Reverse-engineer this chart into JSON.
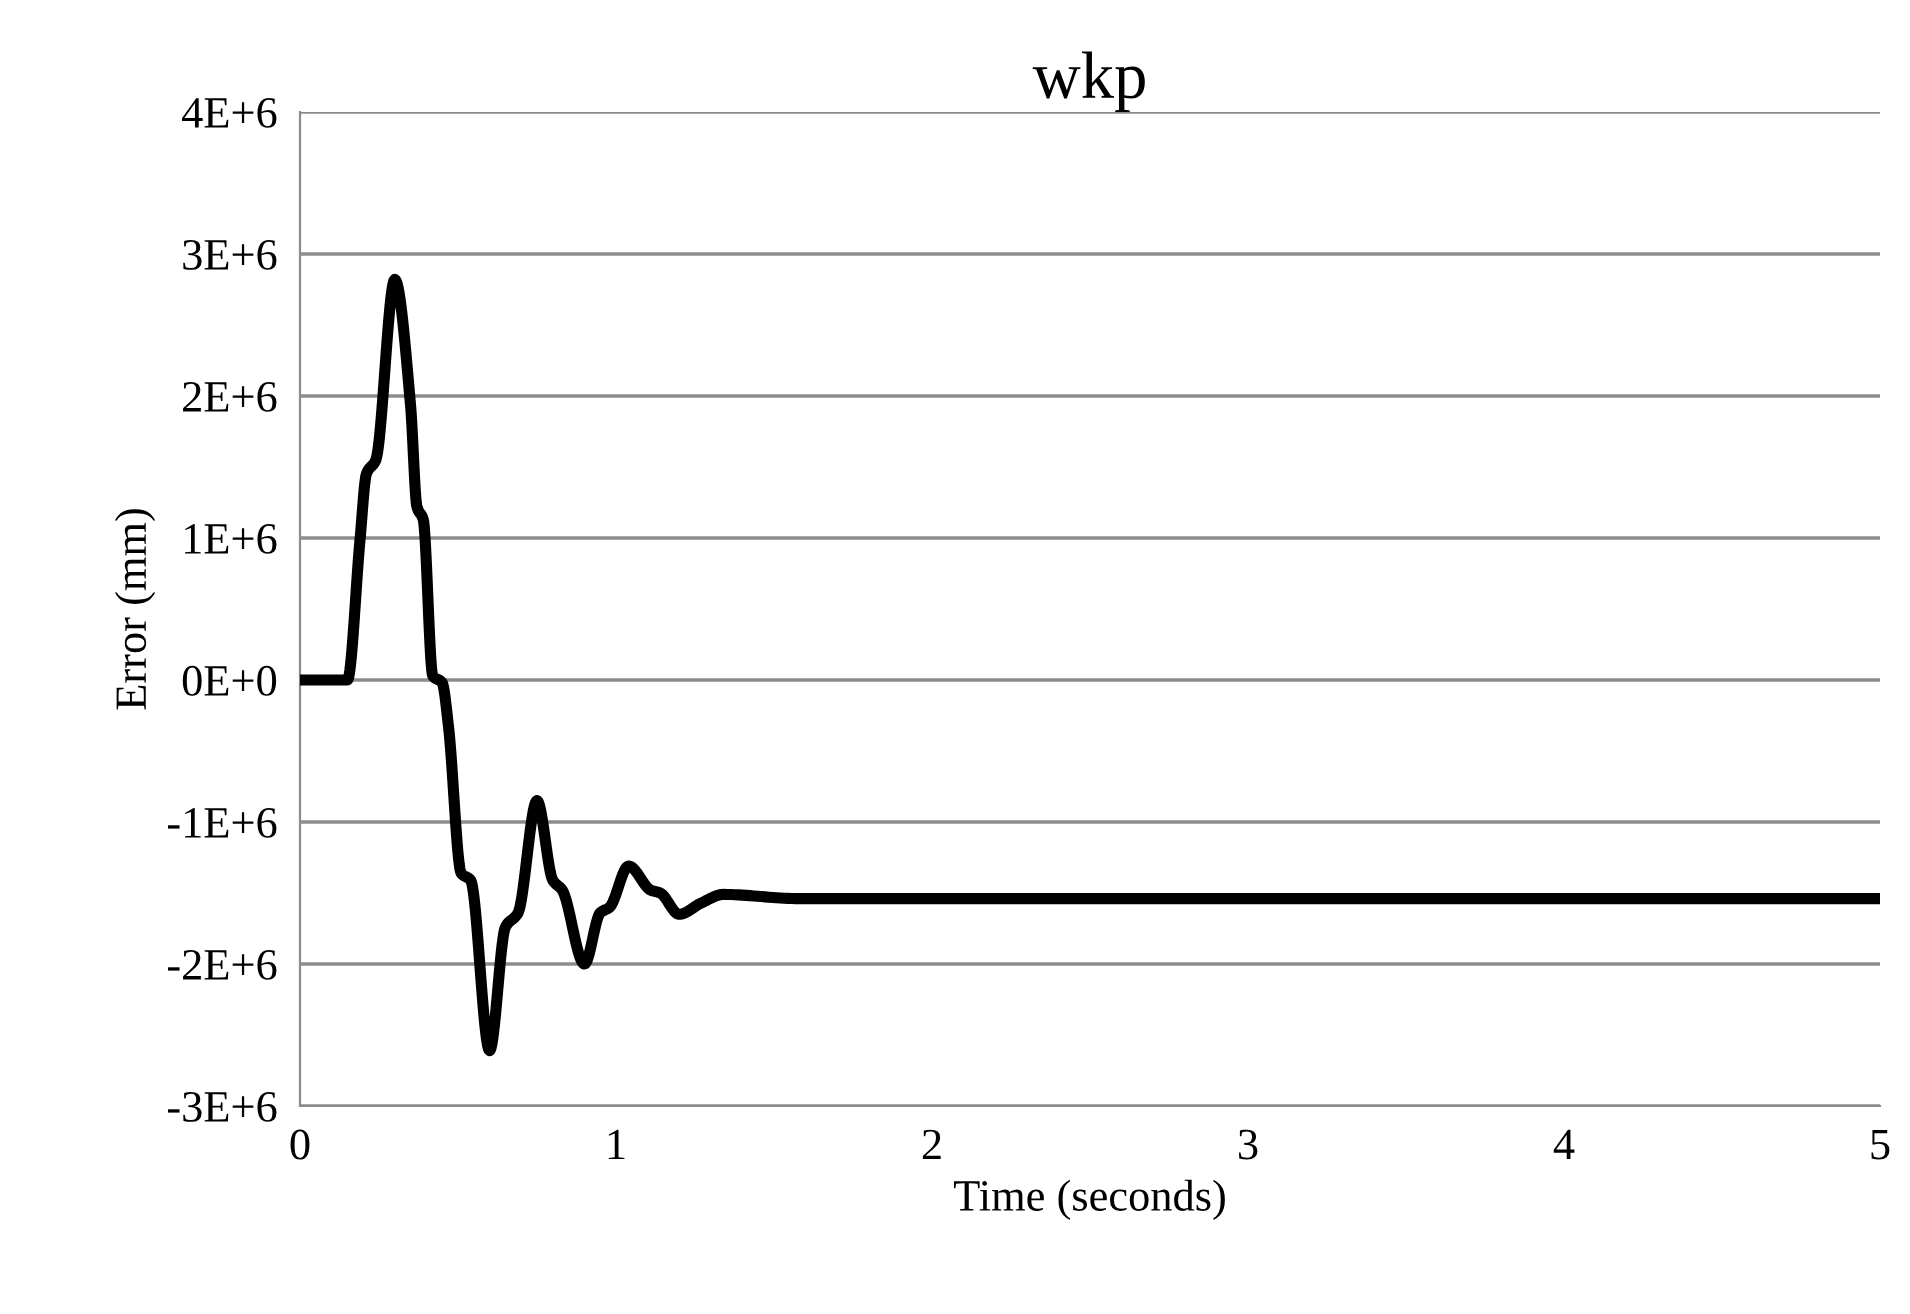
{
  "chart_data": {
    "type": "line",
    "title": "wkp",
    "xlabel": "Time (seconds)",
    "ylabel": "Error (mm)",
    "x": [
      0,
      0.15,
      0.19,
      0.21,
      0.24,
      0.3,
      0.35,
      0.37,
      0.39,
      0.42,
      0.45,
      0.47,
      0.51,
      0.54,
      0.6,
      0.65,
      0.69,
      0.75,
      0.8,
      0.83,
      0.9,
      0.95,
      0.98,
      1.04,
      1.11,
      1.14,
      1.2,
      1.27,
      1.34,
      1.58,
      5
    ],
    "series": [
      {
        "color": "#000000",
        "values": [
          0,
          0,
          990000,
          1450000,
          1550000,
          2820000,
          1930000,
          1220000,
          1130000,
          30000,
          -20000,
          -330000,
          -1360000,
          -1410000,
          -2610000,
          -1740000,
          -1640000,
          -850000,
          -1410000,
          -1480000,
          -2000000,
          -1640000,
          -1600000,
          -1310000,
          -1480000,
          -1500000,
          -1650000,
          -1570000,
          -1510000,
          -1540000,
          -1540000
        ]
      }
    ],
    "xlim": [
      0,
      5
    ],
    "xticks": [
      0,
      1,
      2,
      3,
      4,
      5
    ],
    "ylim": [
      -3000000,
      4000000
    ],
    "yticks": [
      {
        "value": -3000000,
        "label": "-3E+6"
      },
      {
        "value": -2000000,
        "label": "-2E+6"
      },
      {
        "value": -1000000,
        "label": "-1E+6"
      },
      {
        "value": 0,
        "label": "0E+0"
      },
      {
        "value": 1000000,
        "label": "1E+6"
      },
      {
        "value": 2000000,
        "label": "2E+6"
      },
      {
        "value": 3000000,
        "label": "3E+6"
      },
      {
        "value": 4000000,
        "label": "4E+6"
      }
    ],
    "grid": "y",
    "marker": "none",
    "line_style": "solid"
  }
}
